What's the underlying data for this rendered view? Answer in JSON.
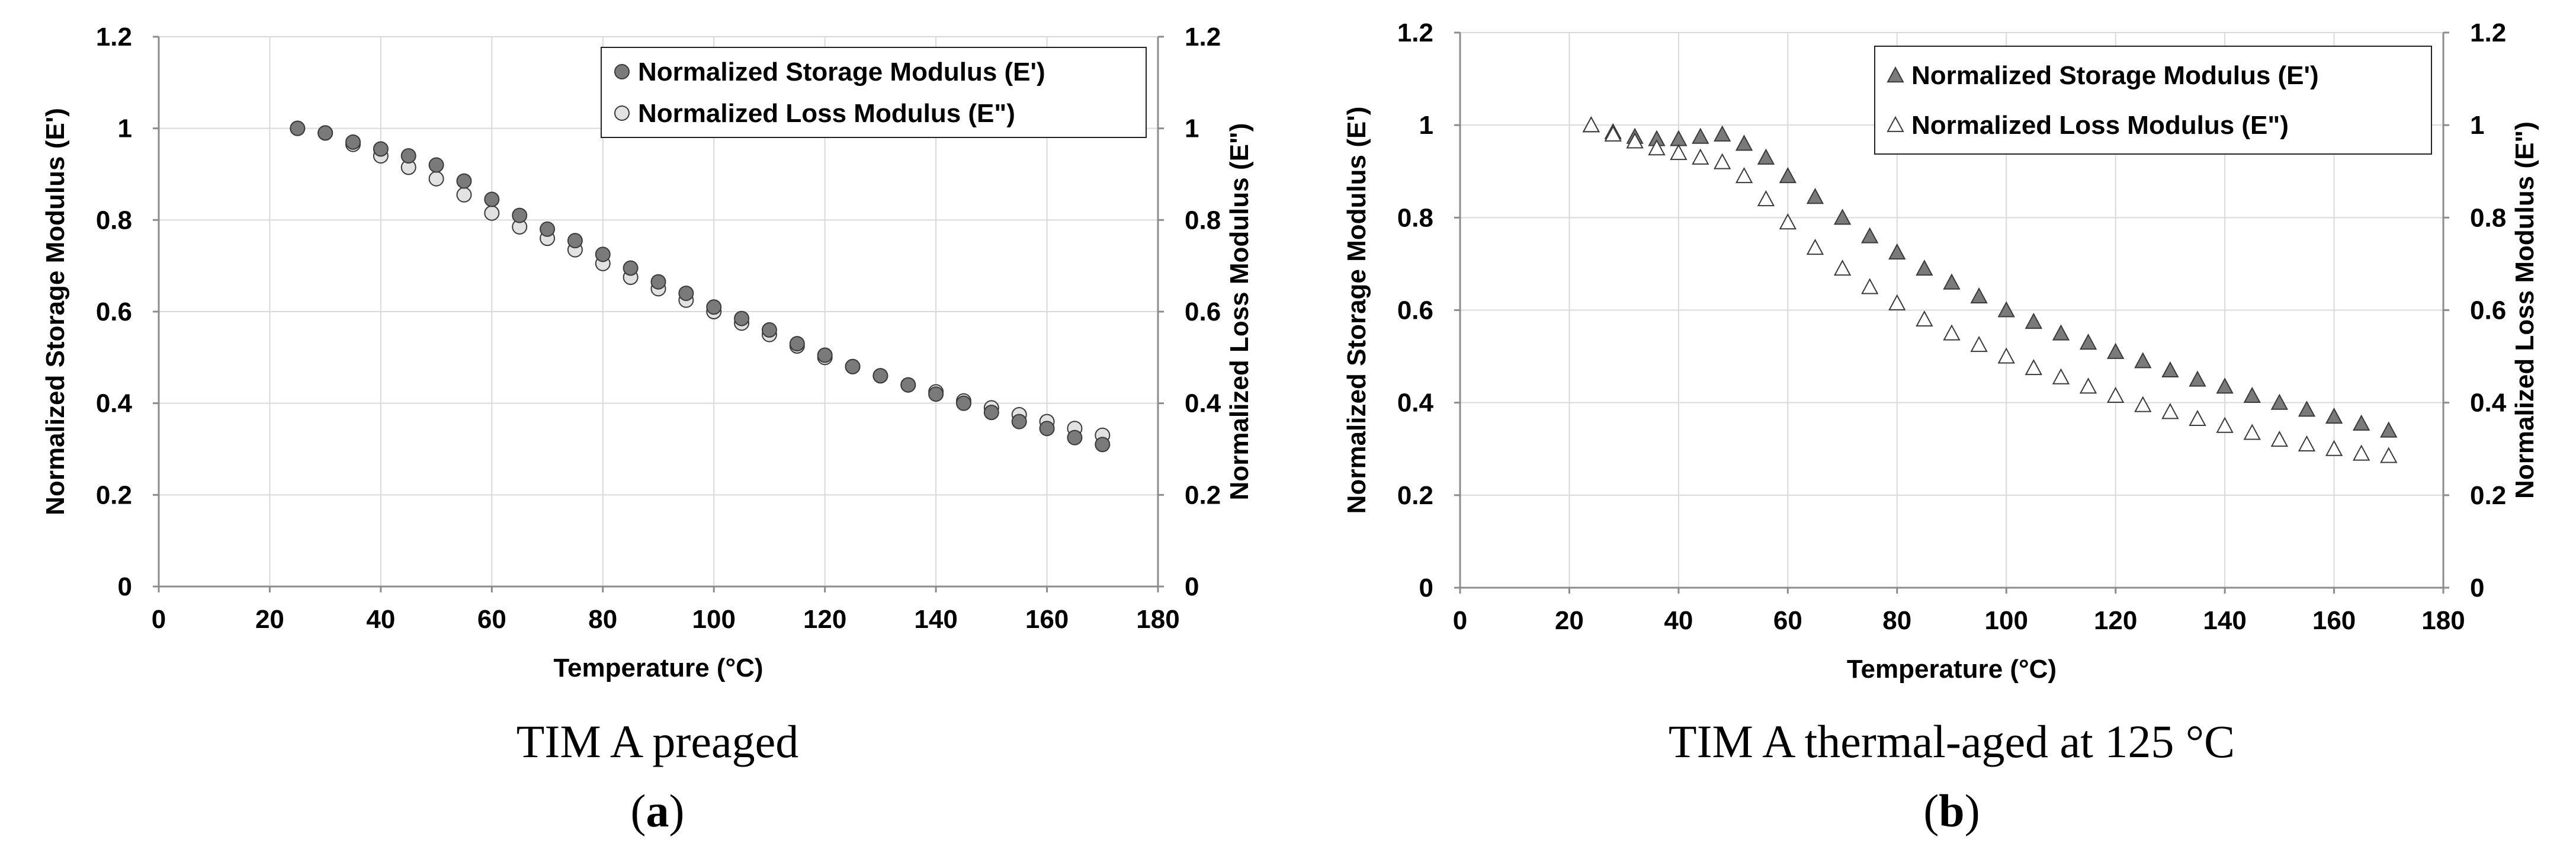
{
  "chart_data": [
    {
      "type": "scatter",
      "caption": "TIM A preaged",
      "panel_letter": "a",
      "xlabel": "Temperature (°C)",
      "ylabel": "Normalized Storage Modulus (E')",
      "y2label": "Normalized Loss Modulus (E\")",
      "xlim": [
        0,
        180
      ],
      "ylim": [
        0,
        1.2
      ],
      "y2lim": [
        0,
        1.2
      ],
      "xticks": [
        "0",
        "20",
        "40",
        "60",
        "80",
        "100",
        "120",
        "140",
        "160",
        "180"
      ],
      "yticks": [
        "0",
        "0.2",
        "0.4",
        "0.6",
        "0.8",
        "1",
        "1.2"
      ],
      "y2ticks": [
        "0",
        "0.2",
        "0.4",
        "0.6",
        "0.8",
        "1",
        "1.2"
      ],
      "grid": true,
      "legend_position": "top-right",
      "x": [
        25,
        30,
        35,
        40,
        45,
        50,
        55,
        60,
        65,
        70,
        75,
        80,
        85,
        90,
        95,
        100,
        105,
        110,
        115,
        120,
        125,
        130,
        135,
        140,
        145,
        150,
        155,
        160,
        165,
        170
      ],
      "series": [
        {
          "name": "Normalized Storage Modulus (E')",
          "marker": "circle",
          "color": "#7a7a7a",
          "values": [
            1.0,
            0.99,
            0.97,
            0.955,
            0.94,
            0.92,
            0.885,
            0.845,
            0.81,
            0.78,
            0.755,
            0.725,
            0.695,
            0.665,
            0.64,
            0.61,
            0.585,
            0.56,
            0.53,
            0.505,
            0.48,
            0.46,
            0.44,
            0.42,
            0.4,
            0.38,
            0.36,
            0.345,
            0.325,
            0.31
          ]
        },
        {
          "name": "Normalized Loss Modulus (E\")",
          "marker": "circle",
          "color": "#e2e2e2",
          "values": [
            1.0,
            0.99,
            0.965,
            0.94,
            0.915,
            0.89,
            0.855,
            0.815,
            0.785,
            0.76,
            0.735,
            0.705,
            0.675,
            0.65,
            0.625,
            0.6,
            0.575,
            0.55,
            0.525,
            0.5,
            0.48,
            0.46,
            0.44,
            0.425,
            0.405,
            0.39,
            0.375,
            0.36,
            0.345,
            0.33
          ]
        }
      ]
    },
    {
      "type": "scatter",
      "caption": "TIM A thermal-aged at 125 °C",
      "panel_letter": "b",
      "xlabel": "Temperature (°C)",
      "ylabel": "Normalized Storage Modulus (E')",
      "y2label": "Normalized Loss Modulus (E\")",
      "xlim": [
        0,
        180
      ],
      "ylim": [
        0,
        1.2
      ],
      "y2lim": [
        0,
        1.2
      ],
      "xticks": [
        "0",
        "20",
        "40",
        "60",
        "80",
        "100",
        "120",
        "140",
        "160",
        "180"
      ],
      "yticks": [
        "0",
        "0.2",
        "0.4",
        "0.6",
        "0.8",
        "1",
        "1.2"
      ],
      "y2ticks": [
        "0",
        "0.2",
        "0.4",
        "0.6",
        "0.8",
        "1",
        "1.2"
      ],
      "grid": true,
      "legend_position": "top-right",
      "x": [
        24,
        28,
        32,
        36,
        40,
        44,
        48,
        52,
        56,
        60,
        65,
        70,
        75,
        80,
        85,
        90,
        95,
        100,
        105,
        110,
        115,
        120,
        125,
        130,
        135,
        140,
        145,
        150,
        155,
        160,
        165,
        170
      ],
      "series": [
        {
          "name": "Normalized Storage Modulus (E')",
          "marker": "triangle",
          "color": "#7a7a7a",
          "values": [
            1.0,
            0.985,
            0.975,
            0.97,
            0.97,
            0.975,
            0.98,
            0.96,
            0.93,
            0.89,
            0.845,
            0.8,
            0.76,
            0.725,
            0.69,
            0.66,
            0.63,
            0.6,
            0.575,
            0.55,
            0.53,
            0.51,
            0.49,
            0.47,
            0.45,
            0.435,
            0.415,
            0.4,
            0.385,
            0.37,
            0.355,
            0.34
          ]
        },
        {
          "name": "Normalized Loss Modulus (E\")",
          "marker": "triangle",
          "color": "#ffffff",
          "values": [
            1.0,
            0.98,
            0.965,
            0.95,
            0.94,
            0.93,
            0.92,
            0.89,
            0.84,
            0.79,
            0.735,
            0.69,
            0.65,
            0.615,
            0.58,
            0.55,
            0.525,
            0.5,
            0.475,
            0.455,
            0.435,
            0.415,
            0.395,
            0.38,
            0.365,
            0.35,
            0.335,
            0.32,
            0.31,
            0.3,
            0.29,
            0.285
          ]
        }
      ]
    }
  ],
  "colors": {
    "grid": "#d9d9d9",
    "axis": "#8c8c8c",
    "marker_edge": "#3a3a3a"
  }
}
